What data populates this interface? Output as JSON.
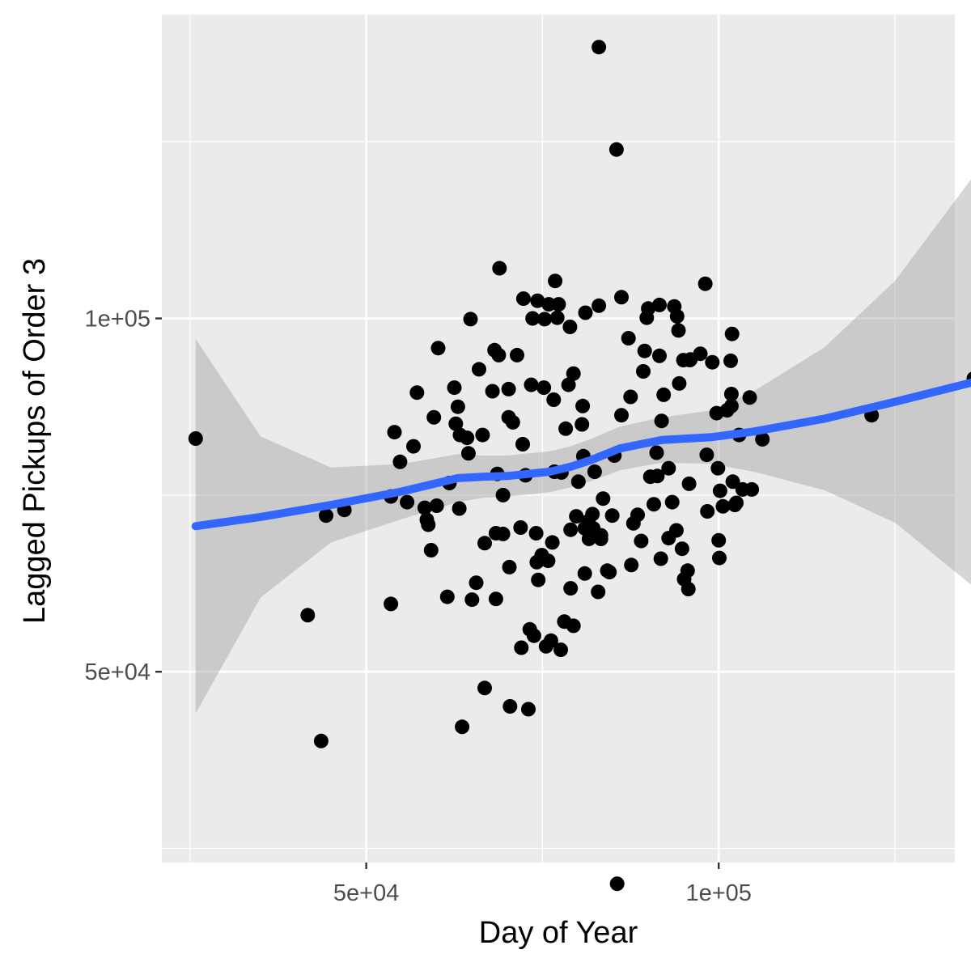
{
  "chart_data": {
    "type": "scatter",
    "title": "",
    "xlabel": "Day of Year",
    "ylabel": "Lagged Pickups of Order 3",
    "xlim": [
      21000,
      133500
    ],
    "ylim": [
      23000,
      143000
    ],
    "x_ticks": [
      {
        "value": 50000,
        "label": "5e+04"
      },
      {
        "value": 100000,
        "label": "1e+05"
      }
    ],
    "x_minor": [
      25000,
      75000,
      125000
    ],
    "y_ticks": [
      {
        "value": 50000,
        "label": "5e+04"
      },
      {
        "value": 100000,
        "label": "1e+05"
      }
    ],
    "y_minor": [
      25000,
      75000,
      125000
    ],
    "grid": true,
    "legend": "none",
    "colors": {
      "panel": "#ebebeb",
      "grid": "#ffffff",
      "points": "#000000",
      "smooth": "#3366ff",
      "ribbon": "#999999",
      "axis_text": "#4d4d4d"
    },
    "points": [
      [
        25800,
        83000
      ],
      [
        41700,
        58000
      ],
      [
        43600,
        40200
      ],
      [
        44300,
        72100
      ],
      [
        46900,
        72900
      ],
      [
        53500,
        59600
      ],
      [
        53500,
        74800
      ],
      [
        54000,
        83900
      ],
      [
        54800,
        79700
      ],
      [
        55800,
        74000
      ],
      [
        56700,
        81900
      ],
      [
        57200,
        89500
      ],
      [
        58300,
        73200
      ],
      [
        58600,
        71500
      ],
      [
        58800,
        70800
      ],
      [
        59200,
        67200
      ],
      [
        59600,
        86000
      ],
      [
        60000,
        73500
      ],
      [
        60200,
        95800
      ],
      [
        61500,
        60600
      ],
      [
        61800,
        76700
      ],
      [
        62500,
        90200
      ],
      [
        62700,
        85100
      ],
      [
        63000,
        87500
      ],
      [
        63200,
        73100
      ],
      [
        63300,
        83500
      ],
      [
        63600,
        42200
      ],
      [
        64300,
        83100
      ],
      [
        64500,
        80900
      ],
      [
        64800,
        99900
      ],
      [
        65000,
        60200
      ],
      [
        65600,
        62600
      ],
      [
        66000,
        92800
      ],
      [
        66500,
        83500
      ],
      [
        66800,
        68200
      ],
      [
        66800,
        47700
      ],
      [
        67900,
        89700
      ],
      [
        68200,
        95500
      ],
      [
        68400,
        69600
      ],
      [
        68400,
        60300
      ],
      [
        68600,
        78000
      ],
      [
        68800,
        94800
      ],
      [
        68900,
        107100
      ],
      [
        69400,
        75000
      ],
      [
        69400,
        69500
      ],
      [
        70200,
        90000
      ],
      [
        70200,
        86000
      ],
      [
        70300,
        64800
      ],
      [
        70400,
        45100
      ],
      [
        70800,
        85300
      ],
      [
        71400,
        94800
      ],
      [
        71900,
        70400
      ],
      [
        72000,
        53400
      ],
      [
        72200,
        82200
      ],
      [
        72300,
        102800
      ],
      [
        72600,
        77800
      ],
      [
        73000,
        44700
      ],
      [
        73200,
        56000
      ],
      [
        73400,
        90600
      ],
      [
        73600,
        100000
      ],
      [
        73800,
        55100
      ],
      [
        74100,
        69600
      ],
      [
        74200,
        65500
      ],
      [
        74300,
        102500
      ],
      [
        74400,
        63000
      ],
      [
        74900,
        66500
      ],
      [
        75200,
        90200
      ],
      [
        75300,
        99900
      ],
      [
        75500,
        53600
      ],
      [
        75800,
        65700
      ],
      [
        75900,
        102000
      ],
      [
        76200,
        54400
      ],
      [
        76400,
        68300
      ],
      [
        76600,
        88500
      ],
      [
        76700,
        78300
      ],
      [
        76800,
        105300
      ],
      [
        77100,
        100100
      ],
      [
        77300,
        102000
      ],
      [
        77600,
        53100
      ],
      [
        77700,
        78200
      ],
      [
        78100,
        57100
      ],
      [
        78300,
        84400
      ],
      [
        78700,
        90600
      ],
      [
        78900,
        98800
      ],
      [
        79000,
        70100
      ],
      [
        79000,
        61800
      ],
      [
        79400,
        56500
      ],
      [
        79400,
        92200
      ],
      [
        79800,
        72000
      ],
      [
        80100,
        76900
      ],
      [
        80600,
        85000
      ],
      [
        80700,
        87600
      ],
      [
        80800,
        80500
      ],
      [
        81000,
        70300
      ],
      [
        81000,
        63900
      ],
      [
        81100,
        100800
      ],
      [
        81500,
        71300
      ],
      [
        81600,
        68800
      ],
      [
        81700,
        70300
      ],
      [
        82100,
        72300
      ],
      [
        82200,
        70300
      ],
      [
        82400,
        78300
      ],
      [
        82900,
        61300
      ],
      [
        83000,
        101800
      ],
      [
        83000,
        138400
      ],
      [
        83300,
        69300
      ],
      [
        83300,
        68800
      ],
      [
        83600,
        74500
      ],
      [
        84200,
        64300
      ],
      [
        84500,
        64100
      ],
      [
        84900,
        72100
      ],
      [
        85200,
        80600
      ],
      [
        85500,
        123900
      ],
      [
        85600,
        20000
      ],
      [
        86200,
        103000
      ],
      [
        86200,
        86300
      ],
      [
        87200,
        97200
      ],
      [
        87500,
        88900
      ],
      [
        87600,
        65100
      ],
      [
        87900,
        71000
      ],
      [
        88500,
        72200
      ],
      [
        89000,
        68500
      ],
      [
        89300,
        92500
      ],
      [
        89500,
        95400
      ],
      [
        89800,
        100100
      ],
      [
        90000,
        101400
      ],
      [
        90300,
        77600
      ],
      [
        90800,
        73700
      ],
      [
        91200,
        81000
      ],
      [
        91300,
        77700
      ],
      [
        91600,
        101900
      ],
      [
        91600,
        94700
      ],
      [
        91800,
        66000
      ],
      [
        91900,
        85500
      ],
      [
        92200,
        89200
      ],
      [
        92900,
        78800
      ],
      [
        92900,
        68900
      ],
      [
        93400,
        74000
      ],
      [
        93700,
        101700
      ],
      [
        94000,
        70000
      ],
      [
        94100,
        100300
      ],
      [
        94300,
        98300
      ],
      [
        94400,
        90800
      ],
      [
        94800,
        67400
      ],
      [
        95000,
        94100
      ],
      [
        95100,
        63100
      ],
      [
        95600,
        64300
      ],
      [
        95700,
        61700
      ],
      [
        95800,
        76600
      ],
      [
        95900,
        94100
      ],
      [
        96000,
        94200
      ],
      [
        97400,
        95000
      ],
      [
        98100,
        104900
      ],
      [
        98300,
        80700
      ],
      [
        98400,
        72700
      ],
      [
        99100,
        93800
      ],
      [
        99700,
        86600
      ],
      [
        99900,
        78800
      ],
      [
        100000,
        68600
      ],
      [
        100100,
        66100
      ],
      [
        100200,
        75600
      ],
      [
        100600,
        73400
      ],
      [
        101200,
        87000
      ],
      [
        101700,
        94000
      ],
      [
        101800,
        89300
      ],
      [
        101800,
        87600
      ],
      [
        101900,
        97800
      ],
      [
        102000,
        76900
      ],
      [
        102300,
        73600
      ],
      [
        102500,
        73900
      ],
      [
        102900,
        83500
      ],
      [
        103400,
        75800
      ],
      [
        104400,
        88800
      ],
      [
        104700,
        75800
      ],
      [
        106200,
        82900
      ],
      [
        121700,
        86300
      ],
      [
        136200,
        91500
      ]
    ],
    "smooth": [
      [
        25800,
        70600
      ],
      [
        35000,
        71900
      ],
      [
        45000,
        73600
      ],
      [
        55000,
        75500
      ],
      [
        63000,
        77400
      ],
      [
        66500,
        77600
      ],
      [
        70000,
        77700
      ],
      [
        76000,
        78300
      ],
      [
        79000,
        79000
      ],
      [
        82000,
        80000
      ],
      [
        86000,
        81600
      ],
      [
        92000,
        82800
      ],
      [
        99000,
        83200
      ],
      [
        105000,
        84000
      ],
      [
        115000,
        85800
      ],
      [
        125000,
        88200
      ],
      [
        136200,
        91000
      ]
    ],
    "ribbon": [
      [
        25800,
        44100,
        97100
      ],
      [
        35000,
        60500,
        83300
      ],
      [
        45000,
        68300,
        78900
      ],
      [
        55000,
        71600,
        79400
      ],
      [
        63000,
        74000,
        80800
      ],
      [
        66500,
        74600,
        80600
      ],
      [
        70000,
        74800,
        80600
      ],
      [
        76000,
        75400,
        81200
      ],
      [
        79000,
        76100,
        81900
      ],
      [
        82000,
        77000,
        83000
      ],
      [
        86000,
        78500,
        84700
      ],
      [
        92000,
        79600,
        86000
      ],
      [
        99000,
        79400,
        87000
      ],
      [
        105000,
        78300,
        89700
      ],
      [
        115000,
        75700,
        95900
      ],
      [
        125000,
        71100,
        105300
      ],
      [
        136200,
        62000,
        120200
      ]
    ]
  }
}
